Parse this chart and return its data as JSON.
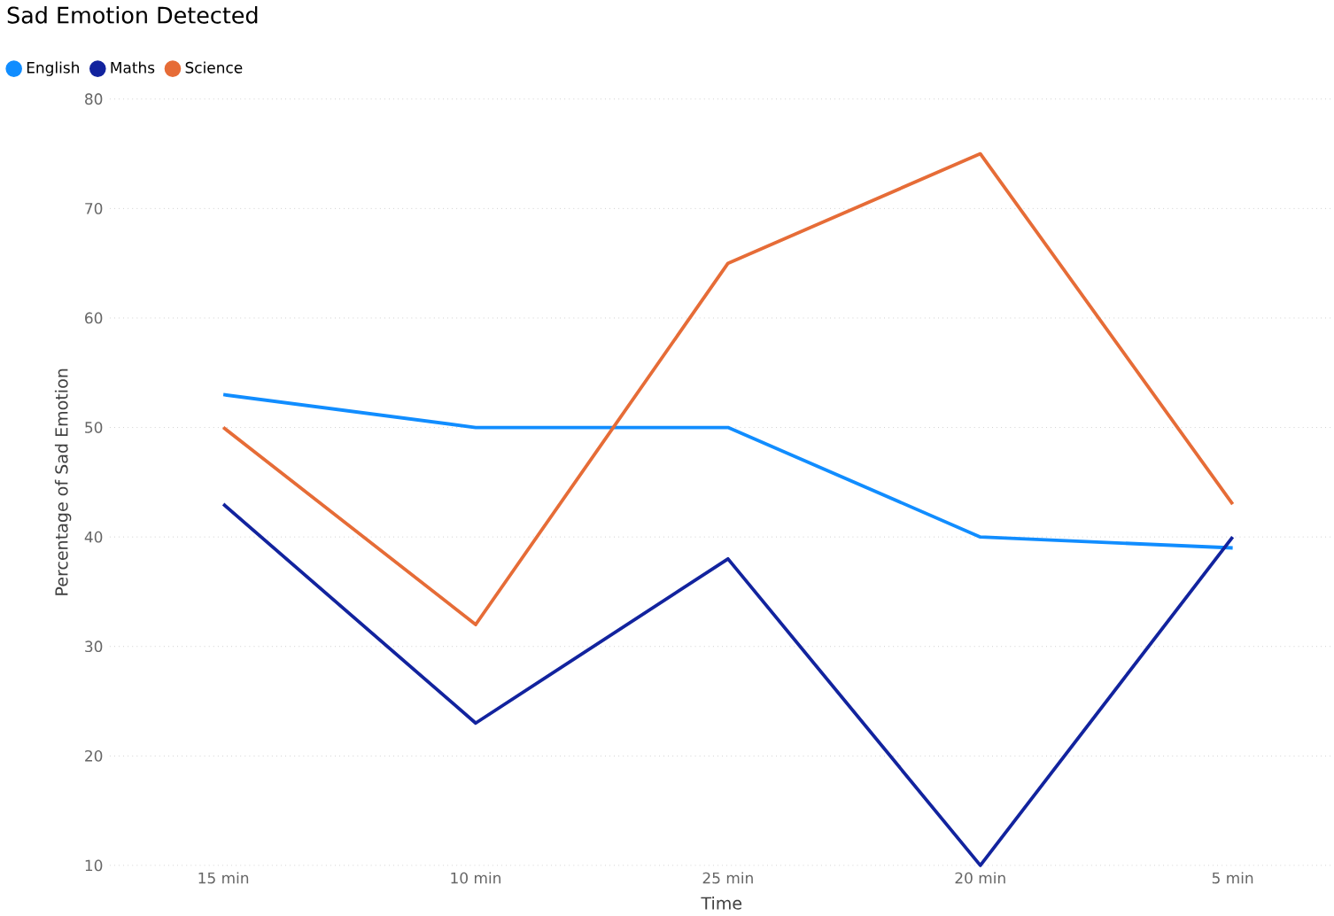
{
  "chart_data": {
    "type": "line",
    "title": "Sad Emotion Detected",
    "xlabel": "Time",
    "ylabel": "Percentage of Sad Emotion",
    "categories": [
      "15 min",
      "10 min",
      "25 min",
      "20 min",
      "5 min"
    ],
    "series": [
      {
        "name": "English",
        "color": "#118dff",
        "values": [
          53,
          50,
          50,
          40,
          39
        ]
      },
      {
        "name": "Maths",
        "color": "#12239e",
        "values": [
          43,
          23,
          38,
          10,
          40
        ]
      },
      {
        "name": "Science",
        "color": "#e66c37",
        "values": [
          50,
          32,
          65,
          75,
          43
        ]
      }
    ],
    "ylim": [
      10,
      80
    ],
    "yticks": [
      10,
      20,
      30,
      40,
      50,
      60,
      70,
      80
    ],
    "grid": "y",
    "legend": "top left",
    "marker": "none",
    "line_style": "solid"
  }
}
